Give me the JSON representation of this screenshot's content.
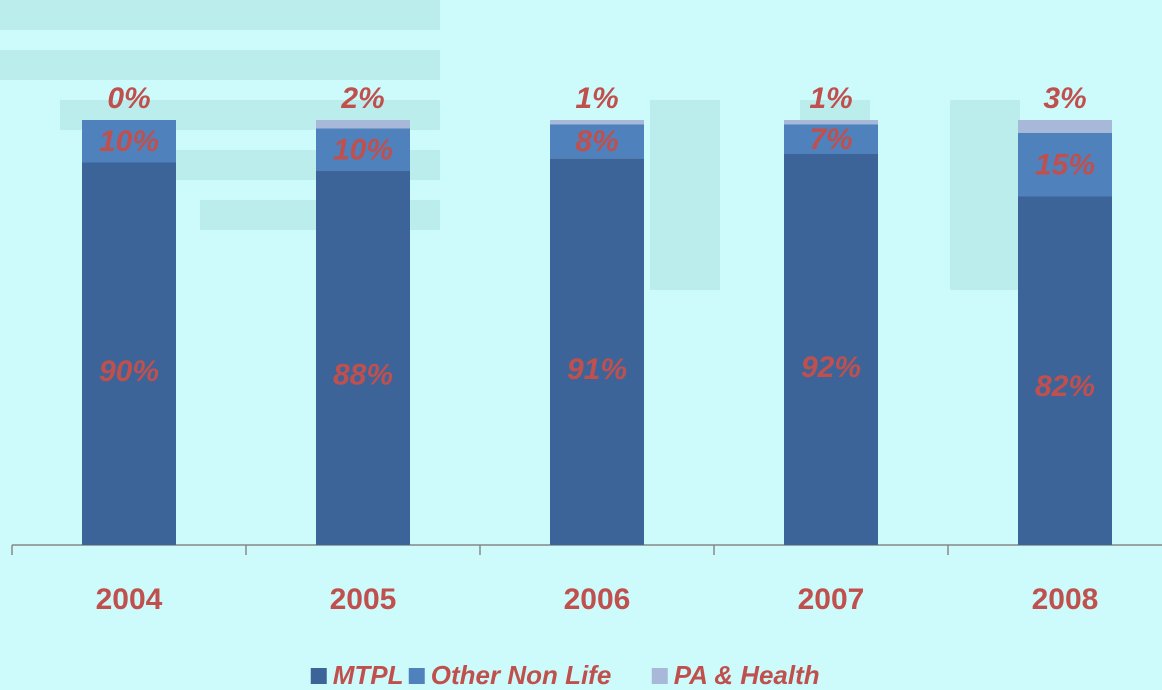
{
  "chart_data": {
    "type": "stacked_bar",
    "categories": [
      "2004",
      "2005",
      "2006",
      "2007",
      "2008"
    ],
    "series": [
      {
        "name": "MTPL",
        "color": "#3d6499",
        "values": [
          90,
          88,
          91,
          92,
          82
        ],
        "value_labels": [
          "90%",
          "88%",
          "91%",
          "92%",
          "82%"
        ]
      },
      {
        "name": "Other Non Life",
        "color": "#4f81bd",
        "values": [
          10,
          10,
          8,
          7,
          15
        ],
        "value_labels": [
          "10%",
          "10%",
          "8%",
          "7%",
          "15%"
        ]
      },
      {
        "name": "PA & Health",
        "color": "#a8b8d8",
        "values": [
          0,
          2,
          1,
          1,
          3
        ],
        "value_labels": [
          "0%",
          "2%",
          "1%",
          "1%",
          "3%"
        ]
      }
    ],
    "ylim": [
      0,
      100
    ]
  }
}
